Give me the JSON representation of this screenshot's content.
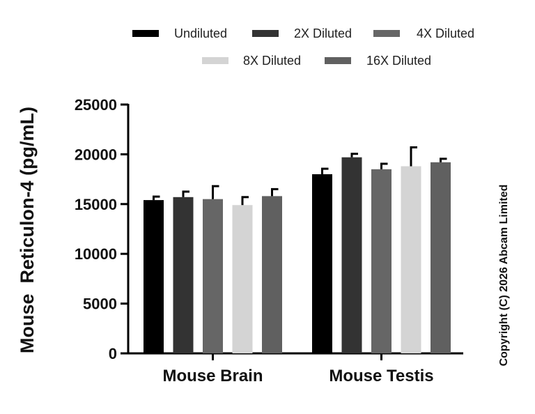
{
  "chart_data": {
    "type": "bar",
    "categories": [
      "Mouse Brain",
      "Mouse Testis"
    ],
    "series": [
      {
        "name": "Undiluted",
        "color": "#000000",
        "values": [
          15400,
          18000
        ],
        "errors": [
          350,
          550
        ]
      },
      {
        "name": "2X Diluted",
        "color": "#333333",
        "values": [
          15700,
          19700
        ],
        "errors": [
          550,
          350
        ]
      },
      {
        "name": "4X Diluted",
        "color": "#666666",
        "values": [
          15500,
          18500
        ],
        "errors": [
          1300,
          550
        ]
      },
      {
        "name": "8X Diluted",
        "color": "#d4d4d4",
        "values": [
          14900,
          18800
        ],
        "errors": [
          800,
          1900
        ]
      },
      {
        "name": "16X Diluted",
        "color": "#606060",
        "values": [
          15800,
          19200
        ],
        "errors": [
          700,
          350
        ]
      }
    ],
    "ylabel": "Mouse  Reticulon-4 (pg/mL)",
    "xlabel": "",
    "ylim": [
      0,
      25000
    ],
    "yticks": [
      0,
      5000,
      10000,
      15000,
      20000,
      25000
    ],
    "legend_position": "top",
    "grid": false
  },
  "copyright": "Copyright (C) 2026 Abcam Limited"
}
